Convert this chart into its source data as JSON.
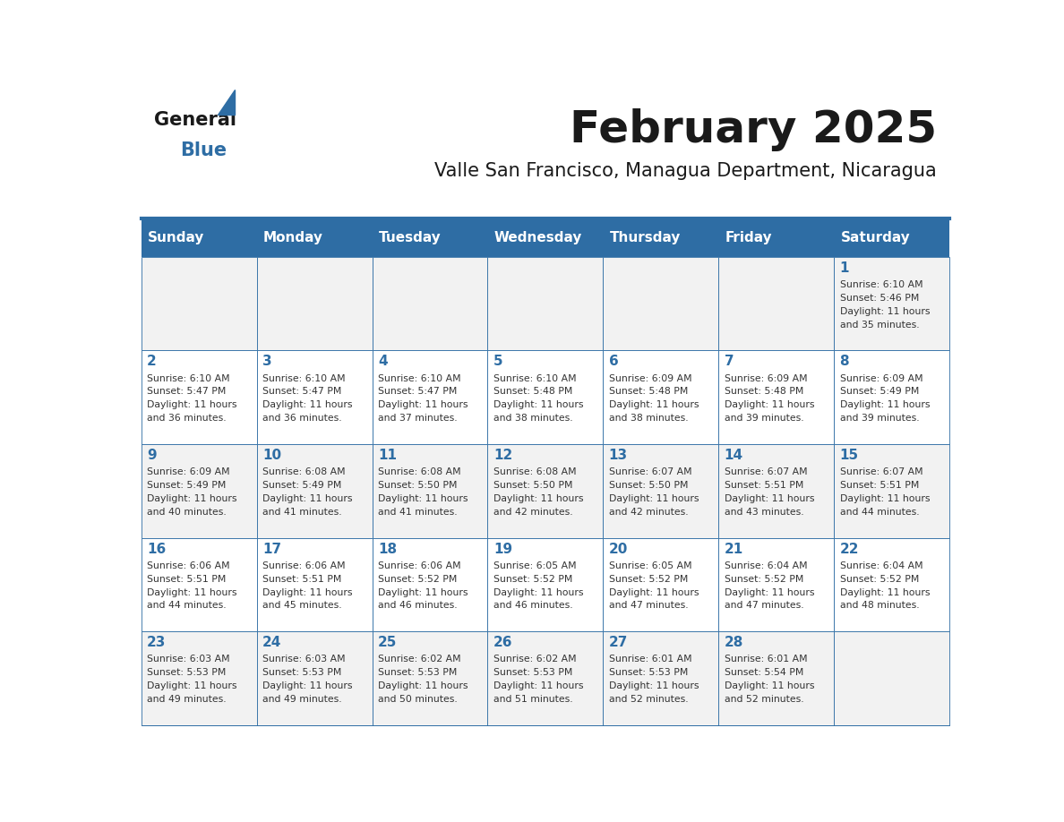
{
  "title": "February 2025",
  "subtitle": "Valle San Francisco, Managua Department, Nicaragua",
  "header_color": "#2E6DA4",
  "header_text_color": "#FFFFFF",
  "border_color": "#2E6DA4",
  "days_of_week": [
    "Sunday",
    "Monday",
    "Tuesday",
    "Wednesday",
    "Thursday",
    "Friday",
    "Saturday"
  ],
  "title_color": "#1a1a1a",
  "subtitle_color": "#1a1a1a",
  "day_num_color": "#2E6DA4",
  "info_color": "#333333",
  "logo_blue_color": "#2E6DA4",
  "row_colors": [
    "#F2F2F2",
    "#FFFFFF"
  ],
  "calendar_data": {
    "1": {
      "sunrise": "6:10 AM",
      "sunset": "5:46 PM",
      "daylight": "11 hours and 35 minutes.",
      "col": 6,
      "row": 0
    },
    "2": {
      "sunrise": "6:10 AM",
      "sunset": "5:47 PM",
      "daylight": "11 hours and 36 minutes.",
      "col": 0,
      "row": 1
    },
    "3": {
      "sunrise": "6:10 AM",
      "sunset": "5:47 PM",
      "daylight": "11 hours and 36 minutes.",
      "col": 1,
      "row": 1
    },
    "4": {
      "sunrise": "6:10 AM",
      "sunset": "5:47 PM",
      "daylight": "11 hours and 37 minutes.",
      "col": 2,
      "row": 1
    },
    "5": {
      "sunrise": "6:10 AM",
      "sunset": "5:48 PM",
      "daylight": "11 hours and 38 minutes.",
      "col": 3,
      "row": 1
    },
    "6": {
      "sunrise": "6:09 AM",
      "sunset": "5:48 PM",
      "daylight": "11 hours and 38 minutes.",
      "col": 4,
      "row": 1
    },
    "7": {
      "sunrise": "6:09 AM",
      "sunset": "5:48 PM",
      "daylight": "11 hours and 39 minutes.",
      "col": 5,
      "row": 1
    },
    "8": {
      "sunrise": "6:09 AM",
      "sunset": "5:49 PM",
      "daylight": "11 hours and 39 minutes.",
      "col": 6,
      "row": 1
    },
    "9": {
      "sunrise": "6:09 AM",
      "sunset": "5:49 PM",
      "daylight": "11 hours and 40 minutes.",
      "col": 0,
      "row": 2
    },
    "10": {
      "sunrise": "6:08 AM",
      "sunset": "5:49 PM",
      "daylight": "11 hours and 41 minutes.",
      "col": 1,
      "row": 2
    },
    "11": {
      "sunrise": "6:08 AM",
      "sunset": "5:50 PM",
      "daylight": "11 hours and 41 minutes.",
      "col": 2,
      "row": 2
    },
    "12": {
      "sunrise": "6:08 AM",
      "sunset": "5:50 PM",
      "daylight": "11 hours and 42 minutes.",
      "col": 3,
      "row": 2
    },
    "13": {
      "sunrise": "6:07 AM",
      "sunset": "5:50 PM",
      "daylight": "11 hours and 42 minutes.",
      "col": 4,
      "row": 2
    },
    "14": {
      "sunrise": "6:07 AM",
      "sunset": "5:51 PM",
      "daylight": "11 hours and 43 minutes.",
      "col": 5,
      "row": 2
    },
    "15": {
      "sunrise": "6:07 AM",
      "sunset": "5:51 PM",
      "daylight": "11 hours and 44 minutes.",
      "col": 6,
      "row": 2
    },
    "16": {
      "sunrise": "6:06 AM",
      "sunset": "5:51 PM",
      "daylight": "11 hours and 44 minutes.",
      "col": 0,
      "row": 3
    },
    "17": {
      "sunrise": "6:06 AM",
      "sunset": "5:51 PM",
      "daylight": "11 hours and 45 minutes.",
      "col": 1,
      "row": 3
    },
    "18": {
      "sunrise": "6:06 AM",
      "sunset": "5:52 PM",
      "daylight": "11 hours and 46 minutes.",
      "col": 2,
      "row": 3
    },
    "19": {
      "sunrise": "6:05 AM",
      "sunset": "5:52 PM",
      "daylight": "11 hours and 46 minutes.",
      "col": 3,
      "row": 3
    },
    "20": {
      "sunrise": "6:05 AM",
      "sunset": "5:52 PM",
      "daylight": "11 hours and 47 minutes.",
      "col": 4,
      "row": 3
    },
    "21": {
      "sunrise": "6:04 AM",
      "sunset": "5:52 PM",
      "daylight": "11 hours and 47 minutes.",
      "col": 5,
      "row": 3
    },
    "22": {
      "sunrise": "6:04 AM",
      "sunset": "5:52 PM",
      "daylight": "11 hours and 48 minutes.",
      "col": 6,
      "row": 3
    },
    "23": {
      "sunrise": "6:03 AM",
      "sunset": "5:53 PM",
      "daylight": "11 hours and 49 minutes.",
      "col": 0,
      "row": 4
    },
    "24": {
      "sunrise": "6:03 AM",
      "sunset": "5:53 PM",
      "daylight": "11 hours and 49 minutes.",
      "col": 1,
      "row": 4
    },
    "25": {
      "sunrise": "6:02 AM",
      "sunset": "5:53 PM",
      "daylight": "11 hours and 50 minutes.",
      "col": 2,
      "row": 4
    },
    "26": {
      "sunrise": "6:02 AM",
      "sunset": "5:53 PM",
      "daylight": "11 hours and 51 minutes.",
      "col": 3,
      "row": 4
    },
    "27": {
      "sunrise": "6:01 AM",
      "sunset": "5:53 PM",
      "daylight": "11 hours and 52 minutes.",
      "col": 4,
      "row": 4
    },
    "28": {
      "sunrise": "6:01 AM",
      "sunset": "5:54 PM",
      "daylight": "11 hours and 52 minutes.",
      "col": 5,
      "row": 4
    }
  }
}
